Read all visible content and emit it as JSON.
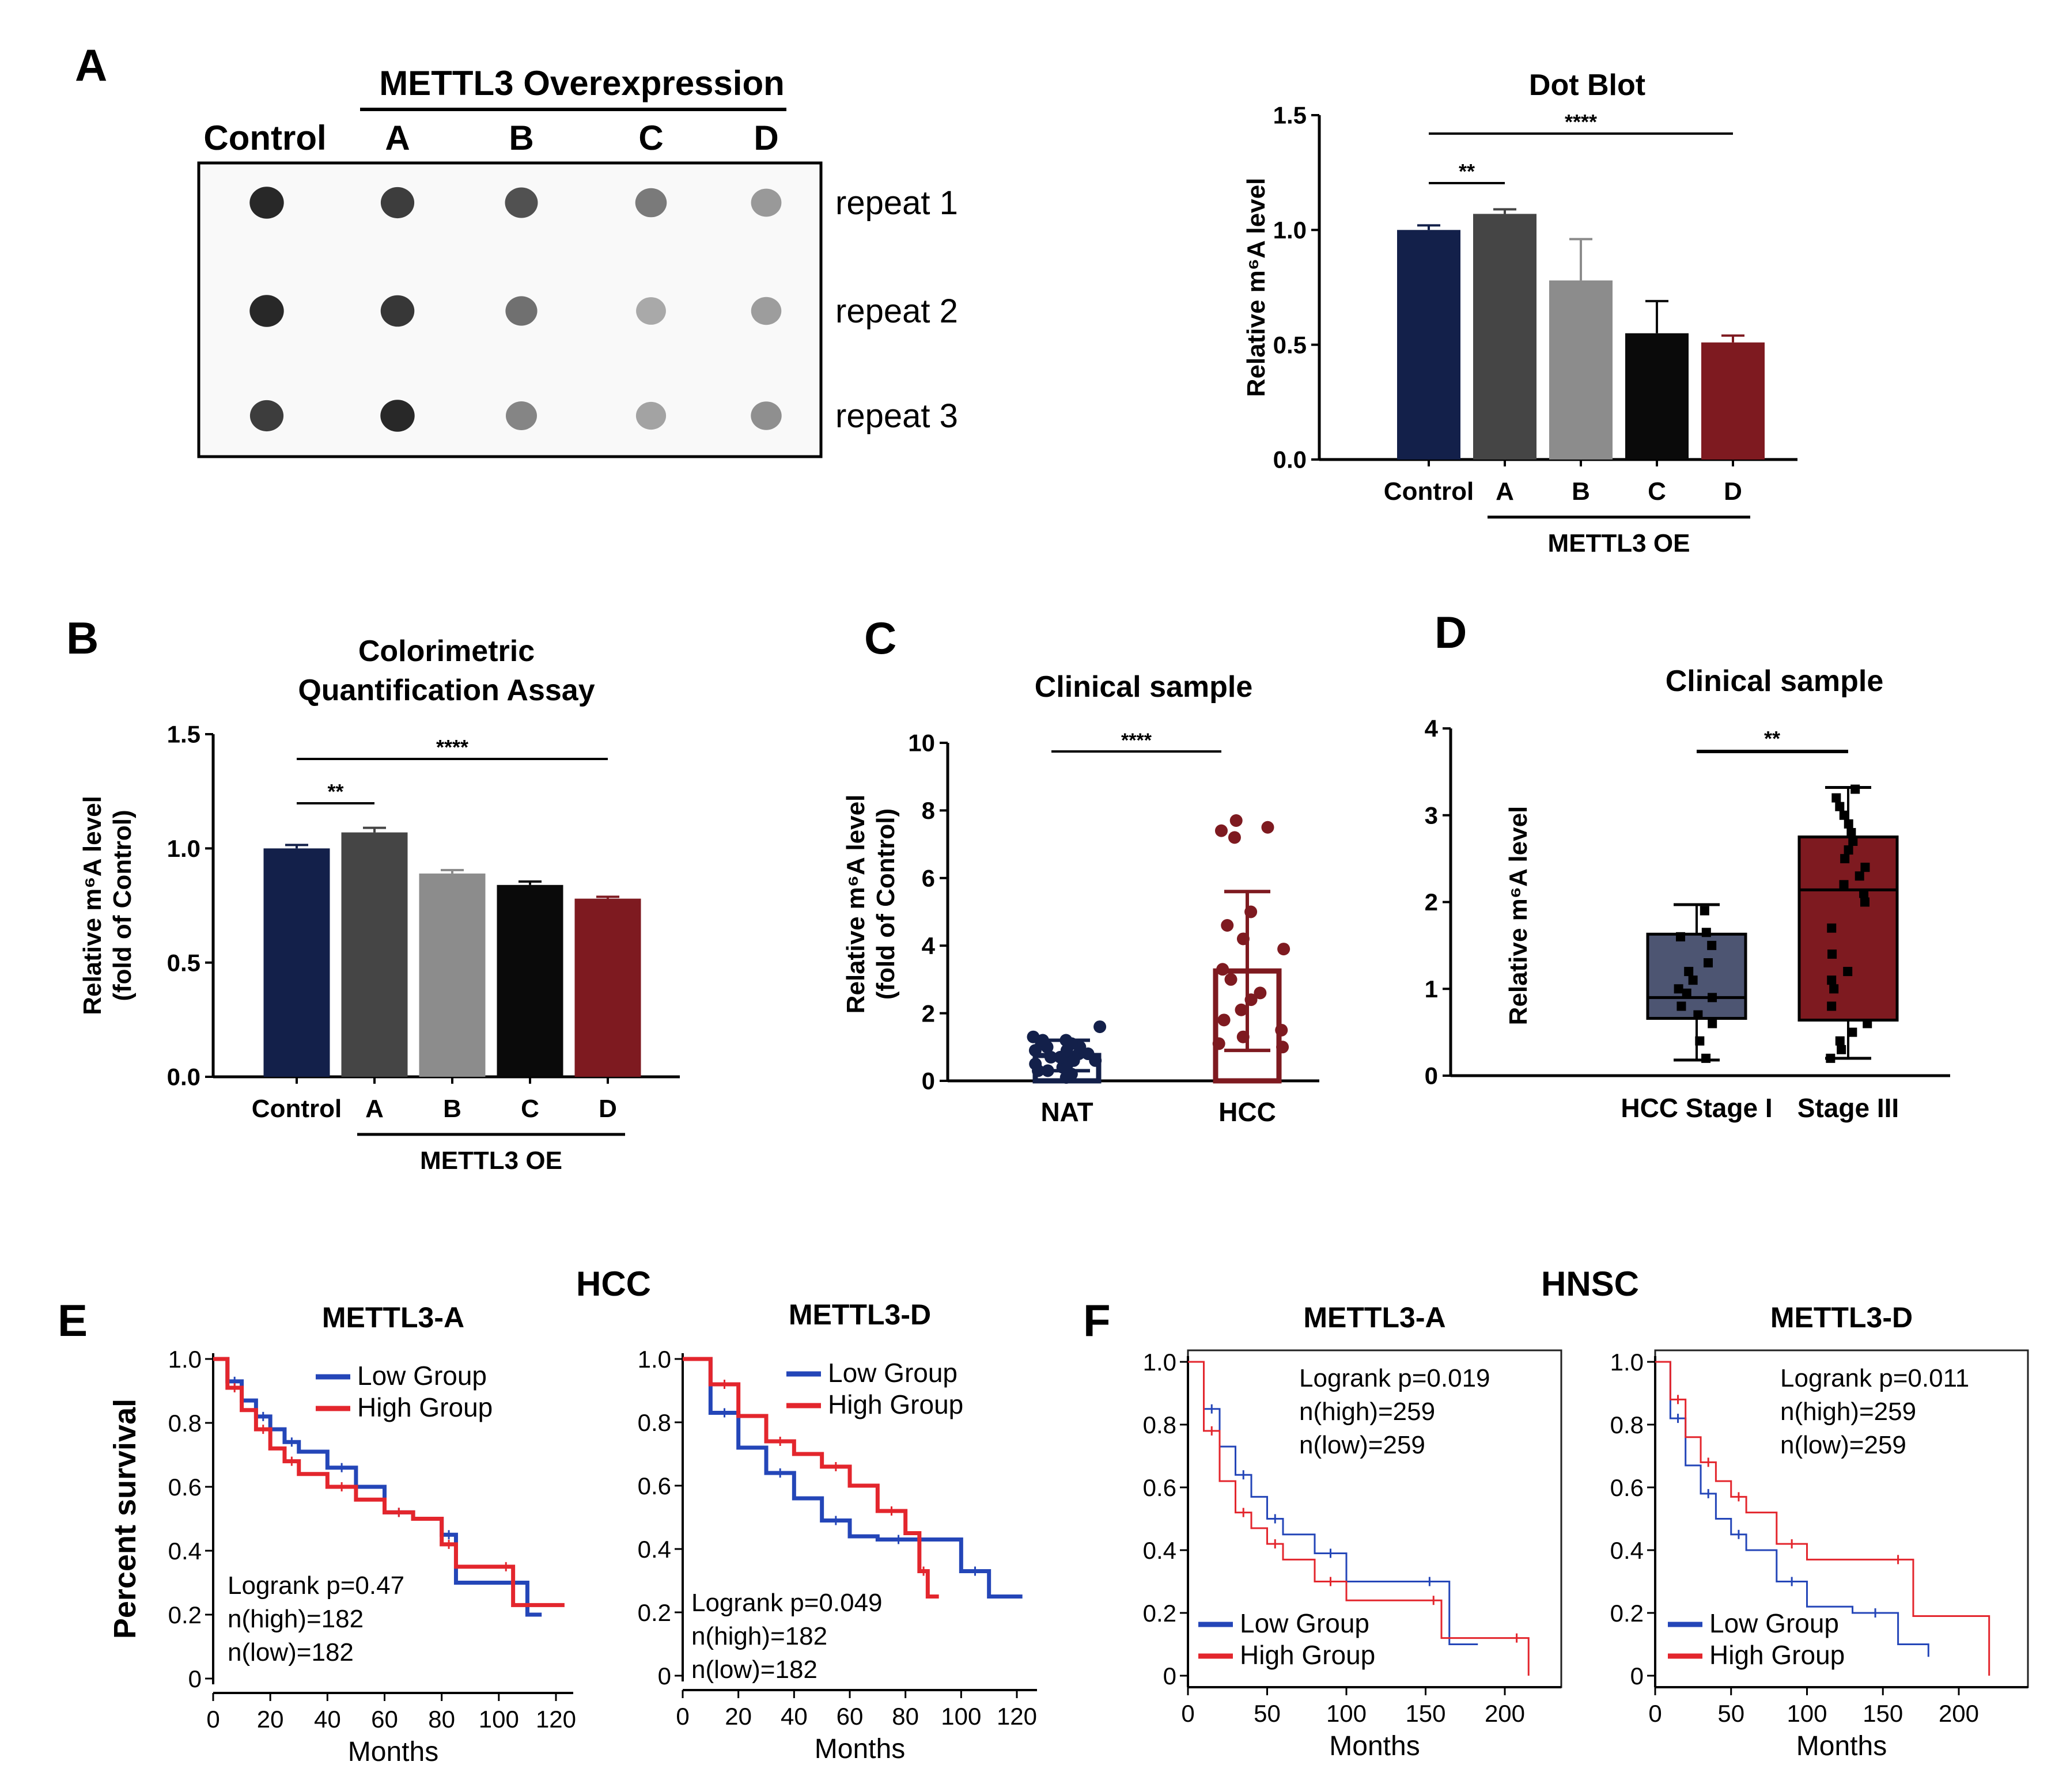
{
  "colors": {
    "navy": "#13204a",
    "dark_gray": "#454545",
    "light_gray": "#8c8c8c",
    "black": "#0a0a0a",
    "dark_red": "#7e1a20",
    "box_stage1": "#4d5572",
    "km_blue": "#2446b8",
    "km_red": "#e3262d"
  },
  "panel_letters": {
    "a": "A",
    "b": "B",
    "c": "C",
    "d": "D",
    "e": "E",
    "f": "F"
  },
  "panel_a_blot": {
    "group_title": "METTL3  Overexpression",
    "control_label": "Control",
    "lane_labels": [
      "A",
      "B",
      "C",
      "D"
    ],
    "row_labels": [
      "repeat 1",
      "repeat 2",
      "repeat 3"
    ],
    "dot_intensity": [
      [
        0.95,
        0.85,
        0.75,
        0.55,
        0.4
      ],
      [
        0.95,
        0.88,
        0.6,
        0.32,
        0.38
      ],
      [
        0.85,
        0.95,
        0.5,
        0.35,
        0.45
      ]
    ]
  },
  "group_labels": {
    "dot_blot_oe": "METTL3  OE",
    "colorimetric_oe": "METTL3  OE"
  },
  "section_labels": {
    "hcc": "HCC",
    "hnsc": "HNSC"
  },
  "chart_data": [
    {
      "id": "dot_blot",
      "type": "bar",
      "title": "Dot Blot",
      "xlabel": "",
      "ylabel": "Relative m⁶A level",
      "ylim": [
        0,
        1.5
      ],
      "yticks": [
        "0.0",
        "0.5",
        "1.0",
        "1.5"
      ],
      "categories": [
        "Control",
        "A",
        "B",
        "C",
        "D"
      ],
      "values": [
        1.0,
        1.07,
        0.78,
        0.55,
        0.51
      ],
      "errors": [
        0.02,
        0.02,
        0.18,
        0.14,
        0.03
      ],
      "significance": [
        {
          "from": 0,
          "to": 1,
          "label": "**"
        },
        {
          "from": 0,
          "to": 4,
          "label": "****"
        }
      ]
    },
    {
      "id": "colorimetric",
      "type": "bar",
      "title": "Colorimetric",
      "subtitle": "Quantification Assay",
      "ylabel": "Relative m⁶A level",
      "ylabel2": "(fold of Control)",
      "ylim": [
        0,
        1.5
      ],
      "yticks": [
        "0.0",
        "0.5",
        "1.0",
        "1.5"
      ],
      "categories": [
        "Control",
        "A",
        "B",
        "C",
        "D"
      ],
      "values": [
        1.0,
        1.07,
        0.89,
        0.84,
        0.78
      ],
      "errors": [
        0.015,
        0.02,
        0.015,
        0.015,
        0.008
      ],
      "significance": [
        {
          "from": 0,
          "to": 1,
          "label": "**"
        },
        {
          "from": 0,
          "to": 4,
          "label": "****"
        }
      ]
    },
    {
      "id": "clinical_c",
      "type": "bar",
      "title": "Clinical sample",
      "ylabel": "Relative m⁶A level",
      "ylabel2": "(fold of Control)",
      "ylim": [
        0,
        10
      ],
      "yticks": [
        "0",
        "2",
        "4",
        "6",
        "8",
        "10"
      ],
      "categories": [
        "NAT",
        "HCC"
      ],
      "values": [
        0.75,
        3.25
      ],
      "errors": [
        0.45,
        2.35
      ],
      "points": [
        [
          0.1,
          0.2,
          0.3,
          0.3,
          0.4,
          0.5,
          0.5,
          0.6,
          0.6,
          0.7,
          0.7,
          0.8,
          0.8,
          0.9,
          0.9,
          1.0,
          1.0,
          1.1,
          1.1,
          1.2,
          1.2,
          1.3,
          1.6
        ],
        [
          1.0,
          1.1,
          1.3,
          1.5,
          1.8,
          2.1,
          2.4,
          2.6,
          3.0,
          3.3,
          3.9,
          4.2,
          4.6,
          5.0,
          7.2,
          7.4,
          7.5,
          7.7
        ]
      ],
      "significance": [
        {
          "from": 0,
          "to": 1,
          "label": "****"
        }
      ]
    },
    {
      "id": "clinical_d",
      "type": "box",
      "title": "Clinical sample",
      "ylabel": "Relative m⁶A level",
      "ylim": [
        0,
        4
      ],
      "yticks": [
        "0",
        "1",
        "2",
        "3",
        "4"
      ],
      "categories": [
        "HCC Stage I",
        "Stage III"
      ],
      "boxes": [
        {
          "min": 0.18,
          "q1": 0.66,
          "median": 0.9,
          "q3": 1.63,
          "max": 1.97
        },
        {
          "min": 0.2,
          "q1": 0.64,
          "median": 2.14,
          "q3": 2.75,
          "max": 3.32
        }
      ],
      "points": [
        [
          0.2,
          0.4,
          0.6,
          0.7,
          0.8,
          0.9,
          0.95,
          1.0,
          1.1,
          1.2,
          1.3,
          1.5,
          1.6,
          1.65,
          1.9
        ],
        [
          0.2,
          0.3,
          0.4,
          0.5,
          0.6,
          0.8,
          1.0,
          1.1,
          1.2,
          1.4,
          1.7,
          2.0,
          2.1,
          2.2,
          2.3,
          2.4,
          2.5,
          2.6,
          2.7,
          2.8,
          2.9,
          3.0,
          3.1,
          3.2,
          3.3
        ]
      ],
      "significance": [
        {
          "from": 0,
          "to": 1,
          "label": "**"
        }
      ]
    },
    {
      "id": "hcc_a",
      "type": "line",
      "title": "METTL3-A",
      "xlabel": "Months",
      "ylabel": "Percent survival",
      "xlim": [
        0,
        120
      ],
      "ylim": [
        0,
        1
      ],
      "xticks": [
        "0",
        "20",
        "40",
        "60",
        "80",
        "100",
        "120"
      ],
      "yticks": [
        "0",
        "0.2",
        "0.4",
        "0.6",
        "0.8",
        "1.0"
      ],
      "legend": [
        "Low Group",
        "High Group"
      ],
      "stats": [
        "Logrank p=0.47",
        "n(high)=182",
        "n(low)=182"
      ],
      "series": [
        {
          "name": "Low Group",
          "x": [
            0,
            5,
            10,
            15,
            20,
            25,
            30,
            40,
            50,
            60,
            70,
            80,
            85,
            100,
            110,
            115
          ],
          "y": [
            1.0,
            0.93,
            0.87,
            0.82,
            0.78,
            0.74,
            0.71,
            0.66,
            0.6,
            0.52,
            0.5,
            0.45,
            0.3,
            0.3,
            0.2,
            0.2
          ]
        },
        {
          "name": "High Group",
          "x": [
            0,
            5,
            10,
            15,
            20,
            25,
            30,
            40,
            50,
            60,
            70,
            80,
            85,
            100,
            105,
            123
          ],
          "y": [
            1.0,
            0.91,
            0.84,
            0.78,
            0.72,
            0.68,
            0.64,
            0.6,
            0.56,
            0.52,
            0.5,
            0.42,
            0.35,
            0.35,
            0.23,
            0.23
          ]
        }
      ]
    },
    {
      "id": "hcc_d",
      "type": "line",
      "title": "METTL3-D",
      "xlabel": "Months",
      "ylabel": "",
      "xlim": [
        0,
        120
      ],
      "ylim": [
        0,
        1
      ],
      "xticks": [
        "0",
        "20",
        "40",
        "60",
        "80",
        "100",
        "120"
      ],
      "yticks": [
        "0",
        "0.2",
        "0.4",
        "0.6",
        "0.8",
        "1.0"
      ],
      "legend": [
        "Low Group",
        "High Group"
      ],
      "stats": [
        "Logrank p=0.049",
        "n(high)=182",
        "n(low)=182"
      ],
      "series": [
        {
          "name": "Low Group",
          "x": [
            0,
            10,
            20,
            30,
            40,
            50,
            60,
            70,
            85,
            100,
            110,
            122
          ],
          "y": [
            1.0,
            0.83,
            0.72,
            0.64,
            0.56,
            0.49,
            0.44,
            0.43,
            0.43,
            0.33,
            0.25,
            0.25
          ]
        },
        {
          "name": "High Group",
          "x": [
            0,
            10,
            20,
            30,
            40,
            50,
            60,
            70,
            80,
            85,
            88,
            92
          ],
          "y": [
            1.0,
            0.92,
            0.82,
            0.74,
            0.7,
            0.66,
            0.6,
            0.52,
            0.45,
            0.33,
            0.25,
            0.25
          ]
        }
      ]
    },
    {
      "id": "hnsc_a",
      "type": "line",
      "title": "METTL3-A",
      "xlabel": "Months",
      "ylabel": "",
      "xlim": [
        0,
        200
      ],
      "ylim": [
        0,
        1
      ],
      "xticks": [
        "0",
        "50",
        "100",
        "150",
        "200"
      ],
      "yticks": [
        "0",
        "0.2",
        "0.4",
        "0.6",
        "0.8",
        "1.0"
      ],
      "legend": [
        "Low Group",
        "High Group"
      ],
      "stats": [
        "Logrank p=0.019",
        "n(high)=259",
        "n(low)=259"
      ],
      "series": [
        {
          "name": "Low Group",
          "x": [
            0,
            10,
            20,
            30,
            40,
            50,
            60,
            80,
            100,
            140,
            165,
            183
          ],
          "y": [
            1.0,
            0.85,
            0.73,
            0.64,
            0.57,
            0.5,
            0.45,
            0.39,
            0.3,
            0.3,
            0.1,
            0.1
          ]
        },
        {
          "name": "High Group",
          "x": [
            0,
            10,
            20,
            30,
            40,
            50,
            60,
            80,
            100,
            150,
            160,
            200,
            215
          ],
          "y": [
            1.0,
            0.78,
            0.62,
            0.52,
            0.47,
            0.42,
            0.37,
            0.3,
            0.24,
            0.24,
            0.12,
            0.12,
            0.0
          ]
        }
      ]
    },
    {
      "id": "hnsc_d",
      "type": "line",
      "title": "METTL3-D",
      "xlabel": "Months",
      "ylabel": "",
      "xlim": [
        0,
        200
      ],
      "ylim": [
        0,
        1
      ],
      "xticks": [
        "0",
        "50",
        "100",
        "150",
        "200"
      ],
      "yticks": [
        "0",
        "0.2",
        "0.4",
        "0.6",
        "0.8",
        "1.0"
      ],
      "legend": [
        "Low Group",
        "High Group"
      ],
      "stats": [
        "Logrank p=0.011",
        "n(high)=259",
        "n(low)=259"
      ],
      "series": [
        {
          "name": "Low Group",
          "x": [
            0,
            10,
            20,
            30,
            40,
            50,
            60,
            80,
            100,
            130,
            160,
            180
          ],
          "y": [
            1.0,
            0.82,
            0.67,
            0.58,
            0.5,
            0.45,
            0.4,
            0.3,
            0.22,
            0.2,
            0.1,
            0.06
          ]
        },
        {
          "name": "High Group",
          "x": [
            0,
            10,
            20,
            30,
            40,
            50,
            60,
            80,
            100,
            150,
            170,
            220
          ],
          "y": [
            1.0,
            0.88,
            0.76,
            0.68,
            0.62,
            0.57,
            0.52,
            0.42,
            0.37,
            0.37,
            0.19,
            0.0
          ]
        }
      ]
    }
  ]
}
